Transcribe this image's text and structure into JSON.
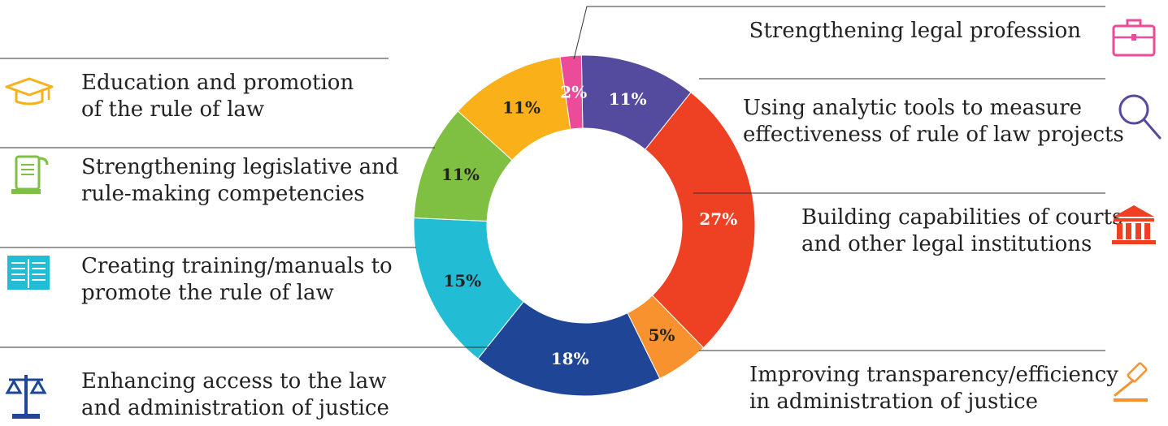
{
  "chart_data": {
    "type": "pie",
    "categories": [
      "Using analytic tools to measure effectiveness of rule of law projects",
      "Building capabilities of courts and other legal institutions",
      "Improving transparency/efficiency in administration of justice",
      "Enhancing access to the law and administration of justice",
      "Creating training/manuals to promote the rule of law",
      "Strengthening legislative and rule-making competencies",
      "Education and promotion of the rule of law",
      "Strengthening legal profession"
    ],
    "values": [
      11,
      27,
      5,
      18,
      15,
      11,
      11,
      2
    ],
    "labels": [
      "11%",
      "27%",
      "5%",
      "18%",
      "15%",
      "11%",
      "11%",
      "2%"
    ],
    "colors": [
      "#544b9e",
      "#ee4023",
      "#f7922e",
      "#1e4596",
      "#22bcd4",
      "#7fc042",
      "#f9b019",
      "#ec4b9a"
    ],
    "label_colors": [
      "#ffffff",
      "#ffffff",
      "#222222",
      "#ffffff",
      "#222222",
      "#222222",
      "#222222",
      "#ffffff"
    ],
    "donut": true,
    "legend_lines": [
      [
        "Using analytic tools to measure",
        "effectiveness of rule of law projects"
      ],
      [
        "Building capabilities of courts",
        "and other legal institutions"
      ],
      [
        "Improving transparency/efficiency",
        "in administration of justice"
      ],
      [
        "Enhancing access to the law",
        "and administration of justice"
      ],
      [
        "Creating training/manuals to",
        "promote the rule of law"
      ],
      [
        "Strengthening legislative and",
        "rule-making competencies"
      ],
      [
        "Education and promotion",
        "of the rule of law"
      ],
      [
        "Strengthening legal profession"
      ]
    ],
    "icons": [
      "magnifier-icon",
      "courthouse-icon",
      "gavel-icon",
      "scales-icon",
      "manual-icon",
      "scroll-icon",
      "graduation-cap-icon",
      "briefcase-icon"
    ]
  }
}
